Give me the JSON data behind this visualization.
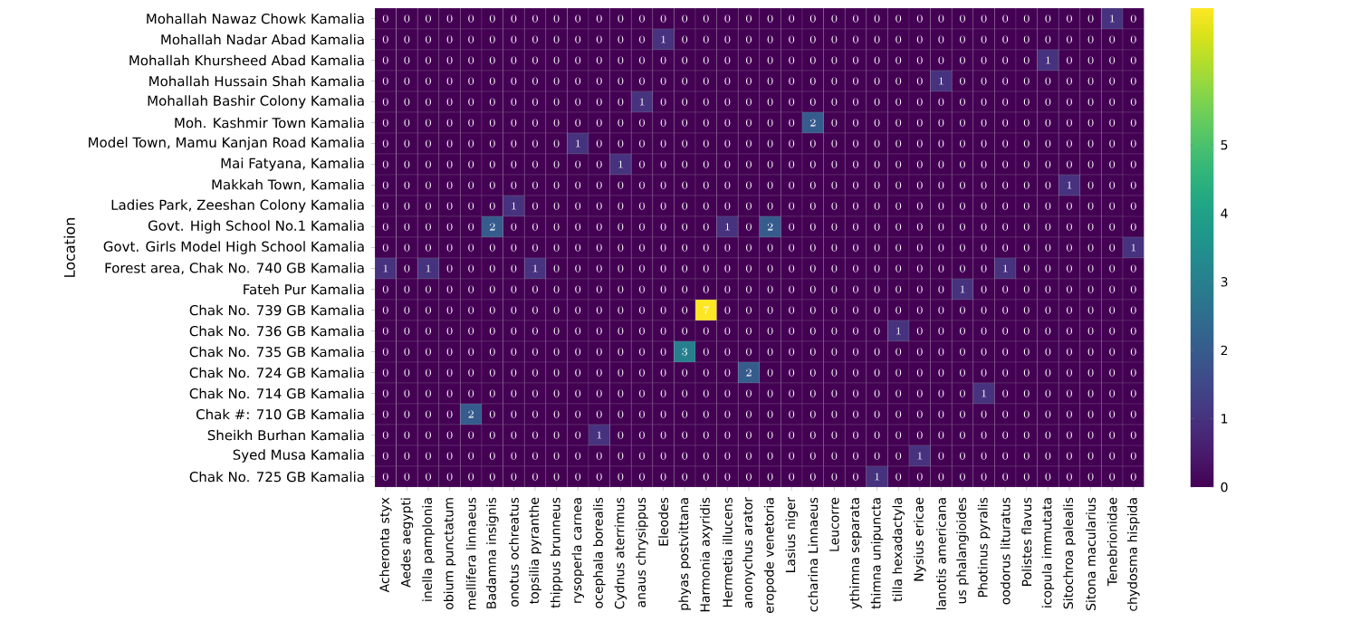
{
  "chart_data": {
    "type": "heatmap",
    "ylabel": "Location",
    "categories": [
      "Acheronta styx",
      "Aedes aegypti",
      "inella pamplonia",
      "obium punctatum",
      "mellifera linnaeus",
      "Badamna insignis",
      "onotus ochreatus",
      "topsilia pyranthe",
      "thippus brunneus",
      "rysoperla carnea",
      "ocephala borealis",
      "Cydnus aterrimus",
      "anaus chrysippus",
      "Eleodes",
      "phyas postvittana",
      "Harmonia axyridis",
      "Hermetia illucens",
      "anonychus arator",
      "eropode venetoria",
      "Lasius niger",
      "ccharina Linnaeus",
      "Leucorre",
      "ythimna separata",
      "thimna unipuncta",
      "tilla hexadactyla",
      "Nysius ericae",
      "lanotis americana",
      "us phalangioides",
      "Photinus pyralis",
      "oodorus lituratus",
      "Polistes flavus",
      "icopula immutata",
      "Sitochroa palealis",
      "Sitona macularius",
      "Tenebrionidae",
      "chydosma hispida"
    ],
    "y_categories": [
      "Mohallah Nawaz Chowk Kamalia",
      "Mohallah Nadar Abad Kamalia",
      "Mohallah Khursheed Abad Kamalia",
      "Mohallah Hussain Shah Kamalia",
      "Mohallah Bashir Colony Kamalia",
      "Moh. Kashmir Town Kamalia",
      "Model Town, Mamu Kanjan Road Kamalia",
      "Mai Fatyana, Kamalia",
      "Makkah Town, Kamalia",
      "Ladies Park, Zeeshan Colony Kamalia",
      "Govt. High School No.1 Kamalia",
      "Govt. Girls Model High School Kamalia",
      "Forest area, Chak No. 740 GB Kamalia",
      "Fateh Pur Kamalia",
      "Chak No. 739 GB Kamalia",
      "Chak No. 736 GB Kamalia",
      "Chak No. 735 GB Kamalia",
      "Chak No. 724 GB Kamalia",
      "Chak No. 714 GB Kamalia",
      "Chak #: 710 GB Kamalia",
      "Sheikh Burhan Kamalia",
      "Syed Musa Kamalia",
      "Chak No. 725 GB Kamalia"
    ],
    "cells": [
      [
        0,
        0,
        0,
        0,
        0,
        0,
        0,
        0,
        0,
        0,
        0,
        0,
        0,
        0,
        0,
        0,
        0,
        0,
        0,
        0,
        0,
        0,
        0,
        0,
        0,
        0,
        0,
        0,
        0,
        0,
        0,
        0,
        0,
        0,
        1,
        0
      ],
      [
        0,
        0,
        0,
        0,
        0,
        0,
        0,
        0,
        0,
        0,
        0,
        0,
        0,
        1,
        0,
        0,
        0,
        0,
        0,
        0,
        0,
        0,
        0,
        0,
        0,
        0,
        0,
        0,
        0,
        0,
        0,
        0,
        0,
        0,
        0,
        0
      ],
      [
        0,
        0,
        0,
        0,
        0,
        0,
        0,
        0,
        0,
        0,
        0,
        0,
        0,
        0,
        0,
        0,
        0,
        0,
        0,
        0,
        0,
        0,
        0,
        0,
        0,
        0,
        0,
        0,
        0,
        0,
        0,
        1,
        0,
        0,
        0,
        0
      ],
      [
        0,
        0,
        0,
        0,
        0,
        0,
        0,
        0,
        0,
        0,
        0,
        0,
        0,
        0,
        0,
        0,
        0,
        0,
        0,
        0,
        0,
        0,
        0,
        0,
        0,
        0,
        1,
        0,
        0,
        0,
        0,
        0,
        0,
        0,
        0,
        0
      ],
      [
        0,
        0,
        0,
        0,
        0,
        0,
        0,
        0,
        0,
        0,
        0,
        0,
        1,
        0,
        0,
        0,
        0,
        0,
        0,
        0,
        0,
        0,
        0,
        0,
        0,
        0,
        0,
        0,
        0,
        0,
        0,
        0,
        0,
        0,
        0,
        0
      ],
      [
        0,
        0,
        0,
        0,
        0,
        0,
        0,
        0,
        0,
        0,
        0,
        0,
        0,
        0,
        0,
        0,
        0,
        0,
        0,
        0,
        2,
        0,
        0,
        0,
        0,
        0,
        0,
        0,
        0,
        0,
        0,
        0,
        0,
        0,
        0,
        0
      ],
      [
        0,
        0,
        0,
        0,
        0,
        0,
        0,
        0,
        0,
        1,
        0,
        0,
        0,
        0,
        0,
        0,
        0,
        0,
        0,
        0,
        0,
        0,
        0,
        0,
        0,
        0,
        0,
        0,
        0,
        0,
        0,
        0,
        0,
        0,
        0,
        0
      ],
      [
        0,
        0,
        0,
        0,
        0,
        0,
        0,
        0,
        0,
        0,
        0,
        1,
        0,
        0,
        0,
        0,
        0,
        0,
        0,
        0,
        0,
        0,
        0,
        0,
        0,
        0,
        0,
        0,
        0,
        0,
        0,
        0,
        0,
        0,
        0,
        0
      ],
      [
        0,
        0,
        0,
        0,
        0,
        0,
        0,
        0,
        0,
        0,
        0,
        0,
        0,
        0,
        0,
        0,
        0,
        0,
        0,
        0,
        0,
        0,
        0,
        0,
        0,
        0,
        0,
        0,
        0,
        0,
        0,
        0,
        1,
        0,
        0,
        0
      ],
      [
        0,
        0,
        0,
        0,
        0,
        0,
        1,
        0,
        0,
        0,
        0,
        0,
        0,
        0,
        0,
        0,
        0,
        0,
        0,
        0,
        0,
        0,
        0,
        0,
        0,
        0,
        0,
        0,
        0,
        0,
        0,
        0,
        0,
        0,
        0,
        0
      ],
      [
        0,
        0,
        0,
        0,
        0,
        2,
        0,
        0,
        0,
        0,
        0,
        0,
        0,
        0,
        0,
        0,
        1,
        0,
        2,
        0,
        0,
        0,
        0,
        0,
        0,
        0,
        0,
        0,
        0,
        0,
        0,
        0,
        0,
        0,
        0,
        0
      ],
      [
        0,
        0,
        0,
        0,
        0,
        0,
        0,
        0,
        0,
        0,
        0,
        0,
        0,
        0,
        0,
        0,
        0,
        0,
        0,
        0,
        0,
        0,
        0,
        0,
        0,
        0,
        0,
        0,
        0,
        0,
        0,
        0,
        0,
        0,
        0,
        1
      ],
      [
        1,
        0,
        1,
        0,
        0,
        0,
        0,
        1,
        0,
        0,
        0,
        0,
        0,
        0,
        0,
        0,
        0,
        0,
        0,
        0,
        0,
        0,
        0,
        0,
        0,
        0,
        0,
        0,
        0,
        1,
        0,
        0,
        0,
        0,
        0,
        0
      ],
      [
        0,
        0,
        0,
        0,
        0,
        0,
        0,
        0,
        0,
        0,
        0,
        0,
        0,
        0,
        0,
        0,
        0,
        0,
        0,
        0,
        0,
        0,
        0,
        0,
        0,
        0,
        0,
        1,
        0,
        0,
        0,
        0,
        0,
        0,
        0,
        0
      ],
      [
        0,
        0,
        0,
        0,
        0,
        0,
        0,
        0,
        0,
        0,
        0,
        0,
        0,
        0,
        0,
        7,
        0,
        0,
        0,
        0,
        0,
        0,
        0,
        0,
        0,
        0,
        0,
        0,
        0,
        0,
        0,
        0,
        0,
        0,
        0,
        0
      ],
      [
        0,
        0,
        0,
        0,
        0,
        0,
        0,
        0,
        0,
        0,
        0,
        0,
        0,
        0,
        0,
        0,
        0,
        0,
        0,
        0,
        0,
        0,
        0,
        0,
        1,
        0,
        0,
        0,
        0,
        0,
        0,
        0,
        0,
        0,
        0,
        0
      ],
      [
        0,
        0,
        0,
        0,
        0,
        0,
        0,
        0,
        0,
        0,
        0,
        0,
        0,
        0,
        3,
        0,
        0,
        0,
        0,
        0,
        0,
        0,
        0,
        0,
        0,
        0,
        0,
        0,
        0,
        0,
        0,
        0,
        0,
        0,
        0,
        0
      ],
      [
        0,
        0,
        0,
        0,
        0,
        0,
        0,
        0,
        0,
        0,
        0,
        0,
        0,
        0,
        0,
        0,
        0,
        2,
        0,
        0,
        0,
        0,
        0,
        0,
        0,
        0,
        0,
        0,
        0,
        0,
        0,
        0,
        0,
        0,
        0,
        0
      ],
      [
        0,
        0,
        0,
        0,
        0,
        0,
        0,
        0,
        0,
        0,
        0,
        0,
        0,
        0,
        0,
        0,
        0,
        0,
        0,
        0,
        0,
        0,
        0,
        0,
        0,
        0,
        0,
        0,
        1,
        0,
        0,
        0,
        0,
        0,
        0,
        0
      ],
      [
        0,
        0,
        0,
        0,
        2,
        0,
        0,
        0,
        0,
        0,
        0,
        0,
        0,
        0,
        0,
        0,
        0,
        0,
        0,
        0,
        0,
        0,
        0,
        0,
        0,
        0,
        0,
        0,
        0,
        0,
        0,
        0,
        0,
        0,
        0,
        0
      ],
      [
        0,
        0,
        0,
        0,
        0,
        0,
        0,
        0,
        0,
        0,
        1,
        0,
        0,
        0,
        0,
        0,
        0,
        0,
        0,
        0,
        0,
        0,
        0,
        0,
        0,
        0,
        0,
        0,
        0,
        0,
        0,
        0,
        0,
        0,
        0,
        0
      ],
      [
        0,
        0,
        0,
        0,
        0,
        0,
        0,
        0,
        0,
        0,
        0,
        0,
        0,
        0,
        0,
        0,
        0,
        0,
        0,
        0,
        0,
        0,
        0,
        0,
        0,
        1,
        0,
        0,
        0,
        0,
        0,
        0,
        0,
        0,
        0,
        0
      ],
      [
        0,
        0,
        0,
        0,
        0,
        0,
        0,
        0,
        0,
        0,
        0,
        0,
        0,
        0,
        0,
        0,
        0,
        0,
        0,
        0,
        0,
        0,
        0,
        1,
        0,
        0,
        0,
        0,
        0,
        0,
        0,
        0,
        0,
        0,
        0,
        0
      ]
    ],
    "data_labels": true,
    "clim": [
      0,
      7
    ],
    "cticks": [
      0,
      1,
      2,
      3,
      4,
      5
    ]
  }
}
